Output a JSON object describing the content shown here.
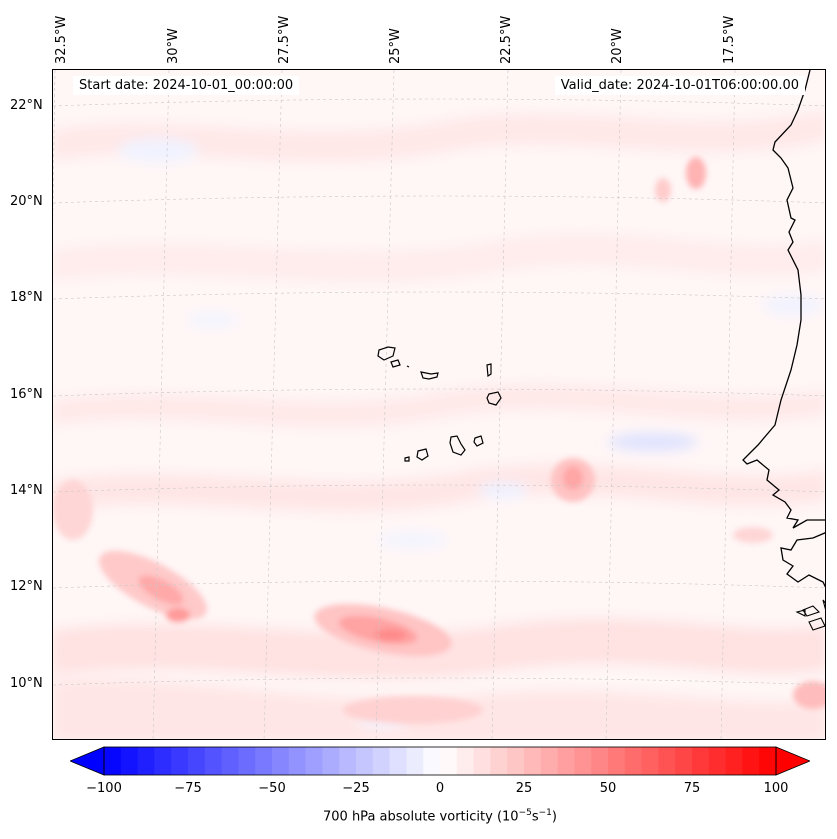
{
  "map": {
    "lon_labels": [
      "32.5°W",
      "30°W",
      "27.5°W",
      "25°W",
      "22.5°W",
      "20°W",
      "17.5°W"
    ],
    "lat_labels": [
      "22°N",
      "20°N",
      "18°N",
      "16°N",
      "14°N",
      "12°N",
      "10°N"
    ],
    "start_date": "Start date: 2024-10-01_00:00:00",
    "valid_date": "Valid_date: 2024-10-01T06:00:00.00"
  },
  "colorbar": {
    "ticks": [
      "−100",
      "−75",
      "−50",
      "−25",
      "0",
      "25",
      "50",
      "75",
      "100"
    ],
    "label": "700 hPa absolute vorticity (10",
    "label_exp1": "−5",
    "label_mid": "s",
    "label_exp2": "−1",
    "label_end": ")",
    "vmin": -100,
    "vmax": 100,
    "negative_color": "#0000ff",
    "positive_color": "#ff0000"
  }
}
